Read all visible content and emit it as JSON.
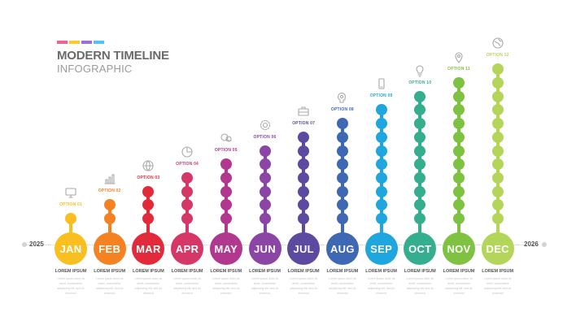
{
  "header": {
    "title": "MODERN TIMELINE",
    "subtitle": "INFOGRAPHIC",
    "swatches": [
      "#f06292",
      "#ffca28",
      "#9c6fd6",
      "#4fc3f7"
    ]
  },
  "axis": {
    "start_year": "2025",
    "end_year": "2026"
  },
  "months": [
    {
      "label": "JAN",
      "option": "OPTION 01",
      "color": "#f9bf21",
      "icon": "monitor-icon",
      "beads": 1,
      "caption_title": "LOREM IPSUM",
      "caption_body": "Lorem ipsum dolor sit amet, consectetur adipiscing elit, sed do eiusmod"
    },
    {
      "label": "FEB",
      "option": "OPTION 02",
      "color": "#f48222",
      "icon": "bar-chart-icon",
      "beads": 2,
      "caption_title": "LOREM IPSUM",
      "caption_body": "Lorem ipsum dolor sit amet, consectetur adipiscing elit, sed do eiusmod"
    },
    {
      "label": "MAR",
      "option": "OPTION 03",
      "color": "#e32a3a",
      "icon": "globe-icon",
      "beads": 3,
      "caption_title": "LOREM IPSUM",
      "caption_body": "Lorem ipsum dolor sit amet, consectetur adipiscing elit, sed do eiusmod"
    },
    {
      "label": "APR",
      "option": "OPTION 04",
      "color": "#d53766",
      "icon": "pie-chart-icon",
      "beads": 4,
      "caption_title": "LOREM IPSUM",
      "caption_body": "Lorem ipsum dolor sit amet, consectetur adipiscing elit, sed do eiusmod"
    },
    {
      "label": "MAY",
      "option": "OPTION 05",
      "color": "#b1378f",
      "icon": "chat-icon",
      "beads": 5,
      "caption_title": "LOREM IPSUM",
      "caption_body": "Lorem ipsum dolor sit amet, consectetur adipiscing elit, sed do eiusmod"
    },
    {
      "label": "JUN",
      "option": "OPTION 06",
      "color": "#8a45a5",
      "icon": "gear-icon",
      "beads": 6,
      "caption_title": "LOREM IPSUM",
      "caption_body": "Lorem ipsum dolor sit amet, consectetur adipiscing elit, sed do eiusmod"
    },
    {
      "label": "JUL",
      "option": "OPTION 07",
      "color": "#5b4aa0",
      "icon": "briefcase-icon",
      "beads": 7,
      "caption_title": "LOREM IPSUM",
      "caption_body": "Lorem ipsum dolor sit amet, consectetur adipiscing elit, sed do eiusmod"
    },
    {
      "label": "AUG",
      "option": "OPTION 08",
      "color": "#3f68b4",
      "icon": "head-idea-icon",
      "beads": 8,
      "caption_title": "LOREM IPSUM",
      "caption_body": "Lorem ipsum dolor sit amet, consectetur adipiscing elit, sed do eiusmod"
    },
    {
      "label": "SEP",
      "option": "OPTION 09",
      "color": "#1fa6df",
      "icon": "smartphone-icon",
      "beads": 9,
      "caption_title": "LOREM IPSUM",
      "caption_body": "Lorem ipsum dolor sit amet, consectetur adipiscing elit, sed do eiusmod"
    },
    {
      "label": "OCT",
      "option": "OPTION 10",
      "color": "#35ae8f",
      "icon": "lightbulb-icon",
      "beads": 10,
      "caption_title": "LOREM IPSUM",
      "caption_body": "Lorem ipsum dolor sit amet, consectetur adipiscing elit, sed do eiusmod"
    },
    {
      "label": "NOV",
      "option": "OPTION 11",
      "color": "#7fc242",
      "icon": "location-pin-icon",
      "beads": 11,
      "caption_title": "LOREM IPSUM",
      "caption_body": "Lorem ipsum dolor sit amet, consectetur adipiscing elit, sed do eiusmod"
    },
    {
      "label": "DEC",
      "option": "OPTION 12",
      "color": "#b3d55a",
      "icon": "world-icon",
      "beads": 12,
      "caption_title": "LOREM IPSUM",
      "caption_body": "Lorem ipsum dolor sit amet, consectetur adipiscing elit, sed do eiusmod"
    }
  ]
}
